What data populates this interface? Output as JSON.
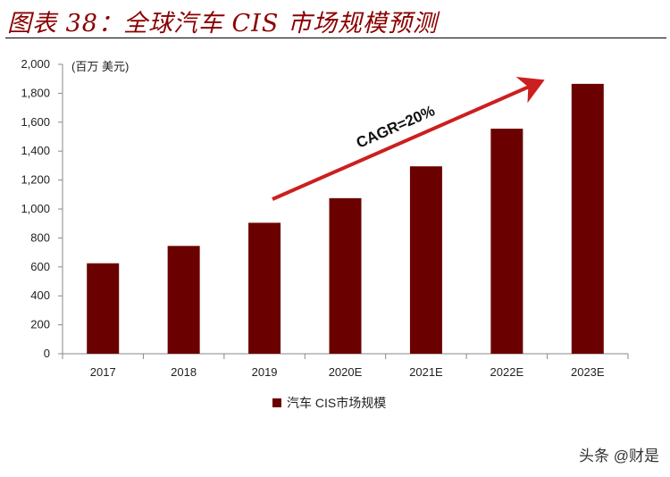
{
  "figure": {
    "title": "图表 38：全球汽车 CIS 市场规模预测",
    "unit": "(百万 美元)",
    "watermark": "头条 @财是"
  },
  "chart_data": {
    "type": "bar",
    "categories": [
      "2017",
      "2018",
      "2019",
      "2020E",
      "2021E",
      "2022E",
      "2023E"
    ],
    "series": [
      {
        "name": "汽车 CIS市场规模",
        "values": [
          625,
          745,
          905,
          1075,
          1295,
          1555,
          1865
        ],
        "color": "#6B0000"
      }
    ],
    "ylim": [
      0,
      2000
    ],
    "yticks": [
      0,
      200,
      400,
      600,
      800,
      1000,
      1200,
      1400,
      1600,
      1800,
      2000
    ],
    "ytick_labels": [
      "0",
      "200",
      "400",
      "600",
      "800",
      "1,000",
      "1,200",
      "1,400",
      "1,600",
      "1,800",
      "2,000"
    ],
    "annotation": {
      "text": "CAGR=20%",
      "arrow_color": "#CC1F1F"
    },
    "legend_position": "bottom-center",
    "grid": false
  }
}
